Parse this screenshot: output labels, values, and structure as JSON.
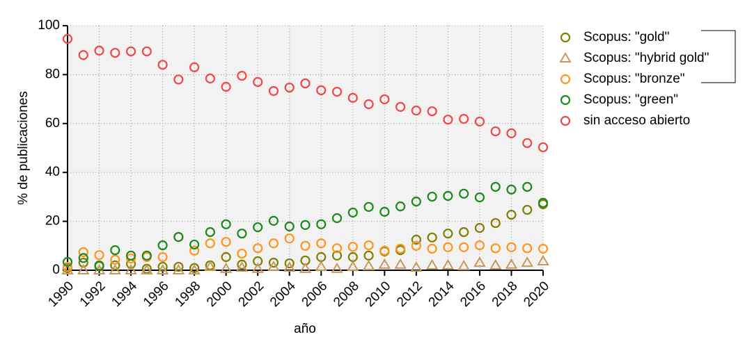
{
  "chart_data": {
    "type": "scatter",
    "xlabel": "año",
    "ylabel": "% de publicaciones",
    "x": [
      1990,
      1991,
      1992,
      1993,
      1994,
      1995,
      1996,
      1997,
      1998,
      1999,
      2000,
      2001,
      2002,
      2003,
      2004,
      2005,
      2006,
      2007,
      2008,
      2009,
      2010,
      2011,
      2012,
      2013,
      2014,
      2015,
      2016,
      2017,
      2018,
      2019,
      2020
    ],
    "xlim": [
      1990,
      2020
    ],
    "xticks": [
      1990,
      1992,
      1994,
      1996,
      1998,
      2000,
      2002,
      2004,
      2006,
      2008,
      2010,
      2012,
      2014,
      2016,
      2018,
      2020
    ],
    "ylim": [
      0,
      100
    ],
    "yticks": [
      0,
      20,
      40,
      60,
      80,
      100
    ],
    "grid": true,
    "legend": "right",
    "series": [
      {
        "name": "Scopus: \"gold\"",
        "color": "#808000",
        "marker": "circle",
        "values": [
          0.9,
          3.1,
          2,
          2,
          2.6,
          0.6,
          1.4,
          1.4,
          0.9,
          2,
          5.4,
          2.3,
          3.7,
          3.1,
          2.8,
          4,
          5.4,
          6,
          5.4,
          6,
          7.7,
          8.2,
          12.5,
          13.4,
          15,
          15.6,
          17.3,
          19.3,
          22.7,
          24.7,
          27
        ]
      },
      {
        "name": "Scopus: \"hybrid gold\"",
        "color": "#c8985a",
        "marker": "triangle",
        "values": [
          0,
          0,
          0,
          0,
          0,
          0,
          0,
          0,
          0,
          1.4,
          0.6,
          1.1,
          0.6,
          1.4,
          1.1,
          0.6,
          1.4,
          0.6,
          1.4,
          1.7,
          2.3,
          2.3,
          1.1,
          2,
          2,
          1.7,
          3.1,
          2,
          2.3,
          3.1,
          3.7
        ]
      },
      {
        "name": "Scopus: \"bronze\"",
        "color": "#ff951c",
        "marker": "circle",
        "values": [
          1.4,
          7.4,
          6.2,
          4.3,
          4.8,
          5.4,
          5.4,
          13.6,
          8,
          11,
          11.6,
          6.8,
          9,
          11,
          13,
          10,
          11,
          9,
          9.6,
          10.2,
          8,
          8.8,
          10,
          8.8,
          9.4,
          9.4,
          10.2,
          9,
          9.4,
          9,
          8.8
        ]
      },
      {
        "name": "Scopus: \"green\"",
        "color": "#1a8a1a",
        "marker": "circle",
        "values": [
          3.4,
          5,
          1.7,
          8.2,
          6,
          6,
          10.2,
          13.6,
          10.5,
          15.6,
          18.8,
          15,
          17.6,
          20.2,
          17.9,
          18.5,
          18.8,
          21.3,
          23.6,
          25.9,
          23.9,
          26.1,
          28.1,
          30.1,
          30.4,
          31.3,
          29.8,
          34.1,
          33,
          34.1,
          27.6
        ]
      },
      {
        "name": "sin acceso abierto",
        "color": "#f04848",
        "marker": "circle",
        "values": [
          94.6,
          88,
          89.8,
          88.9,
          89.5,
          89.5,
          84,
          78,
          83,
          78.4,
          75,
          79.5,
          77,
          73.3,
          74.7,
          76.4,
          73.6,
          73,
          70.5,
          67.9,
          69.9,
          66.8,
          65.3,
          65,
          61.6,
          61.9,
          60.8,
          56.8,
          56,
          52,
          50.3
        ]
      }
    ]
  }
}
